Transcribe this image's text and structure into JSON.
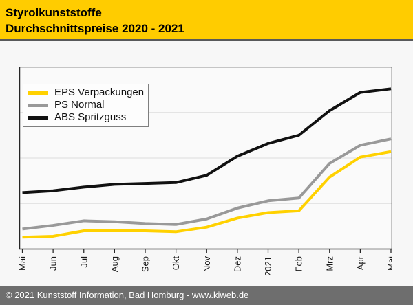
{
  "header": {
    "title_line1": "Styrolkunststoffe",
    "title_line2": "Durchschnittspreise 2020 - 2021"
  },
  "chart_data": {
    "type": "line",
    "title": "Styrolkunststoffe Durchschnittspreise 2020 - 2021",
    "categories": [
      "Mai",
      "Jun",
      "Jul",
      "Aug",
      "Sep",
      "Okt",
      "Nov",
      "Dez",
      "2021",
      "Feb",
      "Mrz",
      "Apr",
      "Mai"
    ],
    "series": [
      {
        "name": "EPS Verpackungen",
        "color": "#FFD100",
        "values": [
          6.5,
          7,
          10,
          10,
          10,
          9.5,
          12,
          17,
          20,
          21,
          39.5,
          50.5,
          53.5
        ]
      },
      {
        "name": "PS Normal",
        "color": "#999999",
        "values": [
          11,
          13,
          15.5,
          15,
          14,
          13.5,
          16.5,
          22.5,
          26.5,
          28,
          47,
          57,
          60.5
        ]
      },
      {
        "name": "ABS Spritzguss",
        "color": "#111111",
        "values": [
          31,
          32,
          34,
          35.5,
          36,
          36.5,
          40.5,
          51,
          58,
          62.5,
          76,
          86,
          88
        ]
      }
    ],
    "xlabel": "",
    "ylabel": "",
    "ylim": [
      0,
      100
    ],
    "y_axis_labels_visible": false,
    "gridlines_at": [
      25,
      50,
      75
    ],
    "grid": "horizontal",
    "legend_position": "top-left",
    "x_tick_label_rotation": -90
  },
  "legend": {
    "items": [
      {
        "label": "EPS Verpackungen",
        "color": "#FFD100"
      },
      {
        "label": "PS Normal",
        "color": "#999999"
      },
      {
        "label": "ABS Spritzguss",
        "color": "#111111"
      }
    ]
  },
  "footer": {
    "text": "© 2021 Kunststoff Information, Bad Homburg - www.kiweb.de"
  },
  "colors": {
    "header_bg": "#FFCC00",
    "header_text": "#000000",
    "divider": "#58595B",
    "page_bg": "#F7F7F7",
    "plot_bg": "#FAFAFA",
    "plot_border": "#262626",
    "gridline": "#DCDCDC",
    "tick_label": "#1A1A1A",
    "footer_bg": "#6E6E6E",
    "footer_text": "#FFFFFF",
    "legend_bg": "#FDFDFD",
    "legend_border": "#7F7F7F"
  }
}
